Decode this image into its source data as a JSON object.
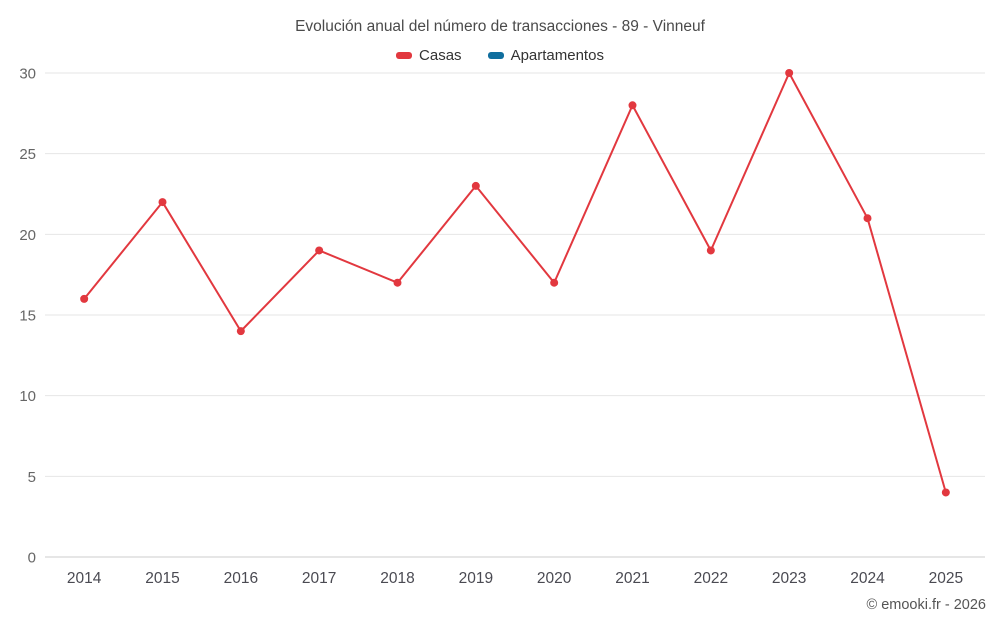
{
  "title": "Evolución anual del número de transacciones - 89 - Vinneuf",
  "footer": "© emooki.fr - 2026",
  "legend": {
    "items": [
      {
        "label": "Casas",
        "color": "#e2383f"
      },
      {
        "label": "Apartamentos",
        "color": "#106e9e"
      }
    ]
  },
  "chart_data": {
    "type": "line",
    "title": "Evolución anual del número de transacciones - 89 - Vinneuf",
    "categories": [
      "2014",
      "2015",
      "2016",
      "2017",
      "2018",
      "2019",
      "2020",
      "2021",
      "2022",
      "2023",
      "2024",
      "2025"
    ],
    "series": [
      {
        "name": "Casas",
        "color": "#e2383f",
        "values": [
          16,
          22,
          14,
          19,
          17,
          23,
          17,
          28,
          19,
          30,
          21,
          4
        ]
      },
      {
        "name": "Apartamentos",
        "color": "#106e9e",
        "values": []
      }
    ],
    "xlabel": "",
    "ylabel": "",
    "ylim": [
      0,
      30
    ],
    "yticks": [
      0,
      5,
      10,
      15,
      20,
      25,
      30
    ],
    "grid": true,
    "legend_position": "top",
    "colors": {
      "grid_line": "#e6e6e6",
      "axis_line": "#cccccc",
      "y_tick_label": "#666666",
      "x_tick_label": "#4a4a52"
    }
  }
}
